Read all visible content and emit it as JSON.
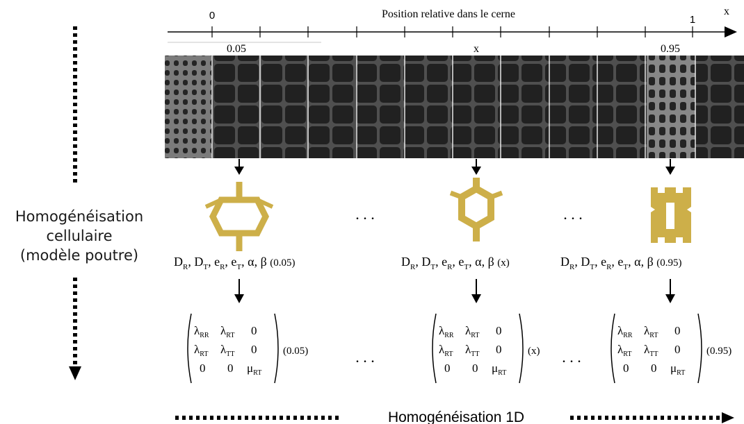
{
  "axis": {
    "title": "Position relative dans le cerne",
    "var": "x",
    "start": "0",
    "end": "1",
    "marks": [
      "0.05",
      "x",
      "0.95"
    ]
  },
  "left_label": {
    "lines": [
      "Homogénéisation",
      "cellulaire",
      "(modèle poutre)"
    ]
  },
  "bottom_label": "Homogénéisation 1D",
  "ellipsis": ". . .",
  "cells": [
    {
      "position": "0.05",
      "shape": "wide-hexagon-icon",
      "params": {
        "D": "D",
        "e": "e",
        "R": "R",
        "T": "T",
        "alpha": "α",
        "beta": "β",
        "arg": "(0.05)"
      },
      "matrix_arg": "(0.05)"
    },
    {
      "position": "x",
      "shape": "regular-hexagon-icon",
      "params": {
        "D": "D",
        "e": "e",
        "R": "R",
        "T": "T",
        "alpha": "α",
        "beta": "β",
        "arg": "(x)"
      },
      "matrix_arg": "(x)"
    },
    {
      "position": "0.95",
      "shape": "thick-wall-cell-icon",
      "params": {
        "D": "D",
        "e": "e",
        "R": "R",
        "T": "T",
        "alpha": "α",
        "beta": "β",
        "arg": "(0.95)"
      },
      "matrix_arg": "(0.95)"
    }
  ],
  "matrix": {
    "lambda": "λ",
    "mu": "μ",
    "zero": "0",
    "RR": "RR",
    "RT": "RT",
    "TT": "TT"
  },
  "colors": {
    "cell_fill": "#CDAF49",
    "micrograph_bg": "#3a3a3a",
    "ink": "#000000"
  }
}
